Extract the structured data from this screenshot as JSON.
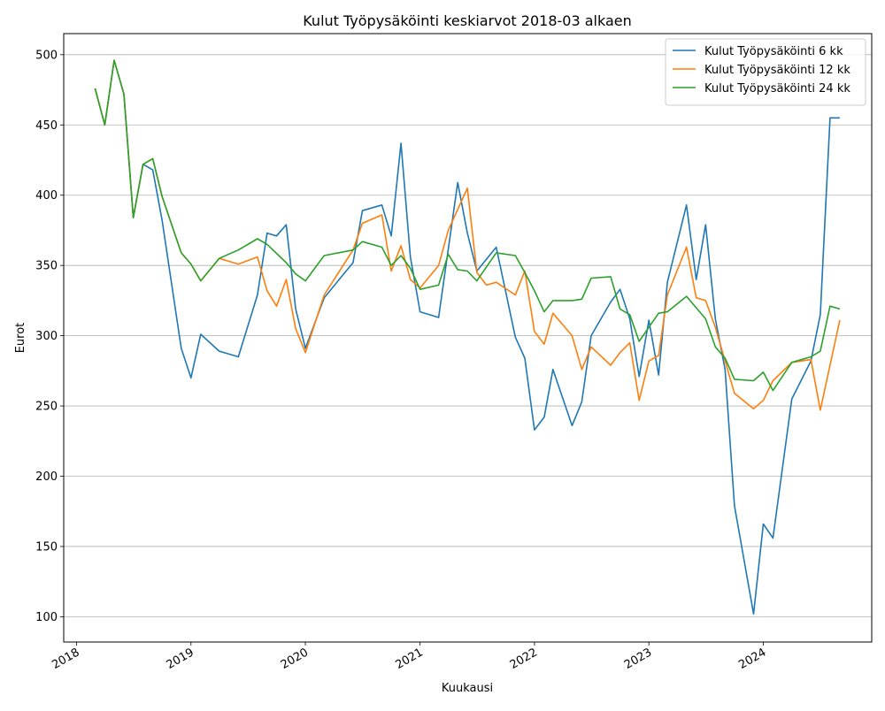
{
  "chart_data": {
    "type": "line",
    "title": "Kulut Työpysäköinti keskiarvot 2018-03 alkaen",
    "xlabel": "Kuukausi",
    "ylabel": "Eurot",
    "xlim": [
      "2017-11-21",
      "2024-12-12"
    ],
    "ylim": [
      82,
      515
    ],
    "grid": "horizontal",
    "legend_position": "top-right",
    "x_ticks": [
      "2018",
      "2019",
      "2020",
      "2021",
      "2022",
      "2023",
      "2024"
    ],
    "x_tick_dates": [
      "2018-01-01",
      "2019-01-01",
      "2020-01-01",
      "2021-01-01",
      "2022-01-01",
      "2023-01-01",
      "2024-01-01"
    ],
    "y_ticks": [
      100,
      150,
      200,
      250,
      300,
      350,
      400,
      450,
      500
    ],
    "series": [
      {
        "name": "Kulut Työpysäköinti 6 kk",
        "color": "#1f77b4",
        "points": [
          [
            "2018-03-01",
            476
          ],
          [
            "2018-04-01",
            450
          ],
          [
            "2018-05-01",
            496
          ],
          [
            "2018-06-01",
            472
          ],
          [
            "2018-07-01",
            384
          ],
          [
            "2018-08-01",
            422
          ],
          [
            "2018-09-01",
            418
          ],
          [
            "2018-10-01",
            382
          ],
          [
            "2018-12-01",
            291
          ],
          [
            "2019-01-01",
            270
          ],
          [
            "2019-02-01",
            301
          ],
          [
            "2019-04-01",
            289
          ],
          [
            "2019-06-01",
            285
          ],
          [
            "2019-08-01",
            329
          ],
          [
            "2019-09-01",
            373
          ],
          [
            "2019-10-01",
            371
          ],
          [
            "2019-11-01",
            379
          ],
          [
            "2019-12-01",
            319
          ],
          [
            "2020-01-01",
            291
          ],
          [
            "2020-03-01",
            327
          ],
          [
            "2020-06-01",
            352
          ],
          [
            "2020-07-01",
            389
          ],
          [
            "2020-09-01",
            393
          ],
          [
            "2020-10-01",
            371
          ],
          [
            "2020-11-01",
            437
          ],
          [
            "2020-12-01",
            356
          ],
          [
            "2021-01-01",
            317
          ],
          [
            "2021-03-01",
            313
          ],
          [
            "2021-05-01",
            409
          ],
          [
            "2021-06-01",
            373
          ],
          [
            "2021-07-01",
            346
          ],
          [
            "2021-09-01",
            363
          ],
          [
            "2021-11-01",
            299
          ],
          [
            "2021-12-01",
            284
          ],
          [
            "2022-01-01",
            233
          ],
          [
            "2022-02-01",
            242
          ],
          [
            "2022-03-01",
            276
          ],
          [
            "2022-05-01",
            236
          ],
          [
            "2022-06-01",
            253
          ],
          [
            "2022-07-01",
            300
          ],
          [
            "2022-09-01",
            324
          ],
          [
            "2022-10-01",
            333
          ],
          [
            "2022-11-01",
            312
          ],
          [
            "2022-12-01",
            271
          ],
          [
            "2023-01-01",
            311
          ],
          [
            "2023-02-01",
            272
          ],
          [
            "2023-03-01",
            338
          ],
          [
            "2023-05-01",
            393
          ],
          [
            "2023-06-01",
            340
          ],
          [
            "2023-07-01",
            379
          ],
          [
            "2023-08-01",
            312
          ],
          [
            "2023-09-01",
            276
          ],
          [
            "2023-10-01",
            179
          ],
          [
            "2023-12-01",
            102
          ],
          [
            "2024-01-01",
            166
          ],
          [
            "2024-02-01",
            156
          ],
          [
            "2024-04-01",
            255
          ],
          [
            "2024-06-01",
            282
          ],
          [
            "2024-07-01",
            315
          ],
          [
            "2024-08-01",
            455
          ],
          [
            "2024-09-01",
            455
          ]
        ]
      },
      {
        "name": "Kulut Työpysäköinti 12 kk",
        "color": "#ff7f0e",
        "points": [
          [
            "2018-03-01",
            476
          ],
          [
            "2018-04-01",
            450
          ],
          [
            "2018-05-01",
            496
          ],
          [
            "2018-06-01",
            472
          ],
          [
            "2018-07-01",
            384
          ],
          [
            "2018-08-01",
            422
          ],
          [
            "2018-09-01",
            426
          ],
          [
            "2018-10-01",
            399
          ],
          [
            "2018-12-01",
            359
          ],
          [
            "2019-01-01",
            351
          ],
          [
            "2019-02-01",
            339
          ],
          [
            "2019-04-01",
            355
          ],
          [
            "2019-06-01",
            351
          ],
          [
            "2019-08-01",
            356
          ],
          [
            "2019-09-01",
            332
          ],
          [
            "2019-10-01",
            321
          ],
          [
            "2019-11-01",
            340
          ],
          [
            "2019-12-01",
            305
          ],
          [
            "2020-01-01",
            288
          ],
          [
            "2020-03-01",
            329
          ],
          [
            "2020-06-01",
            361
          ],
          [
            "2020-07-01",
            380
          ],
          [
            "2020-09-01",
            386
          ],
          [
            "2020-10-01",
            346
          ],
          [
            "2020-11-01",
            364
          ],
          [
            "2020-12-01",
            340
          ],
          [
            "2021-01-01",
            334
          ],
          [
            "2021-03-01",
            350
          ],
          [
            "2021-04-01",
            375
          ],
          [
            "2021-06-01",
            405
          ],
          [
            "2021-07-01",
            345
          ],
          [
            "2021-08-01",
            336
          ],
          [
            "2021-09-01",
            338
          ],
          [
            "2021-11-01",
            329
          ],
          [
            "2021-12-01",
            346
          ],
          [
            "2022-01-01",
            303
          ],
          [
            "2022-02-01",
            294
          ],
          [
            "2022-03-01",
            316
          ],
          [
            "2022-05-01",
            300
          ],
          [
            "2022-06-01",
            276
          ],
          [
            "2022-07-01",
            292
          ],
          [
            "2022-09-01",
            279
          ],
          [
            "2022-10-01",
            288
          ],
          [
            "2022-11-01",
            295
          ],
          [
            "2022-12-01",
            254
          ],
          [
            "2023-01-01",
            282
          ],
          [
            "2023-02-01",
            286
          ],
          [
            "2023-03-01",
            329
          ],
          [
            "2023-05-01",
            363
          ],
          [
            "2023-06-01",
            327
          ],
          [
            "2023-07-01",
            325
          ],
          [
            "2023-08-01",
            306
          ],
          [
            "2023-10-01",
            259
          ],
          [
            "2023-12-01",
            248
          ],
          [
            "2024-01-01",
            254
          ],
          [
            "2024-02-01",
            268
          ],
          [
            "2024-04-01",
            281
          ],
          [
            "2024-06-01",
            283
          ],
          [
            "2024-07-01",
            247
          ],
          [
            "2024-09-01",
            311
          ]
        ]
      },
      {
        "name": "Kulut Työpysäköinti 24 kk",
        "color": "#2ca02c",
        "points": [
          [
            "2018-03-01",
            476
          ],
          [
            "2018-04-01",
            450
          ],
          [
            "2018-05-01",
            496
          ],
          [
            "2018-06-01",
            472
          ],
          [
            "2018-07-01",
            384
          ],
          [
            "2018-08-01",
            422
          ],
          [
            "2018-09-01",
            426
          ],
          [
            "2018-10-01",
            399
          ],
          [
            "2018-12-01",
            359
          ],
          [
            "2019-01-01",
            351
          ],
          [
            "2019-02-01",
            339
          ],
          [
            "2019-04-01",
            355
          ],
          [
            "2019-06-01",
            361
          ],
          [
            "2019-08-01",
            369
          ],
          [
            "2019-09-01",
            365
          ],
          [
            "2019-11-01",
            352
          ],
          [
            "2019-12-01",
            344
          ],
          [
            "2020-01-01",
            339
          ],
          [
            "2020-03-01",
            357
          ],
          [
            "2020-06-01",
            361
          ],
          [
            "2020-07-01",
            367
          ],
          [
            "2020-09-01",
            363
          ],
          [
            "2020-10-01",
            350
          ],
          [
            "2020-11-01",
            357
          ],
          [
            "2020-12-01",
            348
          ],
          [
            "2021-01-01",
            333
          ],
          [
            "2021-03-01",
            336
          ],
          [
            "2021-04-01",
            358
          ],
          [
            "2021-05-01",
            347
          ],
          [
            "2021-06-01",
            346
          ],
          [
            "2021-07-01",
            339
          ],
          [
            "2021-09-01",
            359
          ],
          [
            "2021-11-01",
            357
          ],
          [
            "2021-12-01",
            345
          ],
          [
            "2022-01-01",
            332
          ],
          [
            "2022-02-01",
            317
          ],
          [
            "2022-03-01",
            325
          ],
          [
            "2022-05-01",
            325
          ],
          [
            "2022-06-01",
            326
          ],
          [
            "2022-07-01",
            341
          ],
          [
            "2022-09-01",
            342
          ],
          [
            "2022-10-01",
            319
          ],
          [
            "2022-11-01",
            315
          ],
          [
            "2022-12-01",
            296
          ],
          [
            "2023-01-01",
            306
          ],
          [
            "2023-02-01",
            316
          ],
          [
            "2023-03-01",
            317
          ],
          [
            "2023-05-01",
            328
          ],
          [
            "2023-07-01",
            312
          ],
          [
            "2023-08-01",
            292
          ],
          [
            "2023-09-01",
            284
          ],
          [
            "2023-10-01",
            269
          ],
          [
            "2023-12-01",
            268
          ],
          [
            "2024-01-01",
            274
          ],
          [
            "2024-02-01",
            261
          ],
          [
            "2024-04-01",
            281
          ],
          [
            "2024-06-01",
            285
          ],
          [
            "2024-07-01",
            289
          ],
          [
            "2024-08-01",
            321
          ],
          [
            "2024-09-01",
            319
          ]
        ]
      }
    ]
  }
}
